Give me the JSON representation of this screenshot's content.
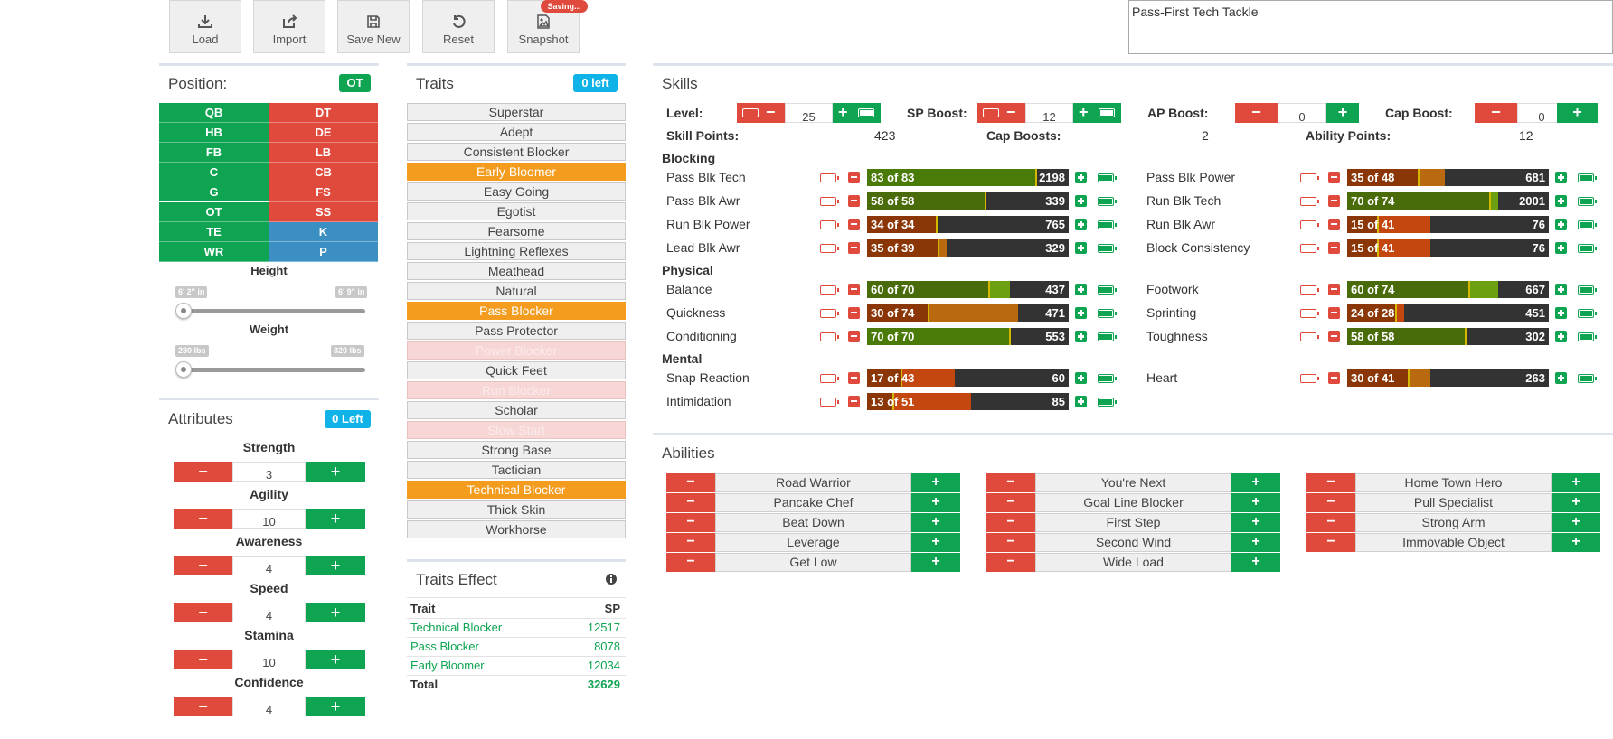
{
  "toolbar": {
    "load": "Load",
    "import": "Import",
    "save_new": "Save New",
    "reset": "Reset",
    "snapshot": "Snapshot",
    "saving_badge": "Saving..."
  },
  "build_name": "Pass-First Tech Tackle",
  "position": {
    "title": "Position:",
    "selected": "OT",
    "left": [
      "QB",
      "HB",
      "FB",
      "C",
      "G",
      "OT",
      "TE",
      "WR"
    ],
    "right": [
      "DT",
      "DE",
      "LB",
      "CB",
      "FS",
      "SS",
      "K",
      "P"
    ],
    "height_label": "Height",
    "height_min": "6' 2\" in",
    "height_max": "6' 9\" in",
    "weight_label": "Weight",
    "weight_min": "280 lbs",
    "weight_max": "320 lbs"
  },
  "attributes": {
    "title": "Attributes",
    "badge": "0 Left",
    "items": [
      {
        "label": "Strength",
        "value": "3"
      },
      {
        "label": "Agility",
        "value": "10"
      },
      {
        "label": "Awareness",
        "value": "4"
      },
      {
        "label": "Speed",
        "value": "4"
      },
      {
        "label": "Stamina",
        "value": "10"
      },
      {
        "label": "Confidence",
        "value": "4"
      }
    ]
  },
  "traits": {
    "title": "Traits",
    "badge": "0 left",
    "items": [
      {
        "label": "Superstar",
        "state": "normal"
      },
      {
        "label": "Adept",
        "state": "normal"
      },
      {
        "label": "Consistent Blocker",
        "state": "normal"
      },
      {
        "label": "Early Bloomer",
        "state": "selected"
      },
      {
        "label": "Easy Going",
        "state": "normal"
      },
      {
        "label": "Egotist",
        "state": "normal"
      },
      {
        "label": "Fearsome",
        "state": "normal"
      },
      {
        "label": "Lightning Reflexes",
        "state": "normal"
      },
      {
        "label": "Meathead",
        "state": "normal"
      },
      {
        "label": "Natural",
        "state": "normal"
      },
      {
        "label": "Pass Blocker",
        "state": "selected"
      },
      {
        "label": "Pass Protector",
        "state": "normal"
      },
      {
        "label": "Power Blocker",
        "state": "disabled"
      },
      {
        "label": "Quick Feet",
        "state": "normal"
      },
      {
        "label": "Run Blocker",
        "state": "disabled"
      },
      {
        "label": "Scholar",
        "state": "normal"
      },
      {
        "label": "Slow Start",
        "state": "disabled"
      },
      {
        "label": "Strong Base",
        "state": "normal"
      },
      {
        "label": "Tactician",
        "state": "normal"
      },
      {
        "label": "Technical Blocker",
        "state": "selected"
      },
      {
        "label": "Thick Skin",
        "state": "normal"
      },
      {
        "label": "Workhorse",
        "state": "normal"
      }
    ]
  },
  "traits_effect": {
    "title": "Traits Effect",
    "col_trait": "Trait",
    "col_sp": "SP",
    "rows": [
      {
        "trait": "Technical Blocker",
        "sp": "12517"
      },
      {
        "trait": "Pass Blocker",
        "sp": "8078"
      },
      {
        "trait": "Early Bloomer",
        "sp": "12034"
      }
    ],
    "total_label": "Total",
    "total_value": "32629"
  },
  "skills": {
    "title": "Skills",
    "level_label": "Level:",
    "level_value": "25",
    "sp_boost_label": "SP Boost:",
    "sp_boost_value": "12",
    "ap_boost_label": "AP Boost:",
    "ap_boost_value": "0",
    "cap_boost_label": "Cap Boost:",
    "cap_boost_value": "0",
    "skill_points_label": "Skill Points:",
    "skill_points_value": "423",
    "cap_boosts_label": "Cap Boosts:",
    "cap_boosts_value": "2",
    "ability_points_label": "Ability Points:",
    "ability_points_value": "12",
    "sections": {
      "blocking": "Blocking",
      "physical": "Physical",
      "mental": "Mental"
    },
    "left": [
      {
        "name": "Pass Blk Tech",
        "current": 83,
        "cap": 83,
        "max": 99,
        "text": "83 of 83",
        "sp": "2198"
      },
      {
        "name": "Pass Blk Awr",
        "current": 58,
        "cap": 58,
        "max": 99,
        "text": "58 of 58",
        "sp": "339",
        "mark": "1"
      },
      {
        "name": "Run Blk Power",
        "current": 34,
        "cap": 34,
        "max": 99,
        "text": "34 of 34",
        "sp": "765"
      },
      {
        "name": "Lead Blk Awr",
        "current": 35,
        "cap": 39,
        "max": 99,
        "text": "35 of 39",
        "sp": "329"
      },
      {
        "name": "Balance",
        "current": 60,
        "cap": 70,
        "max": 99,
        "text": "60 of 70",
        "sp": "437"
      },
      {
        "name": "Quickness",
        "current": 30,
        "cap": 74,
        "max": 99,
        "text": "30 of 74",
        "sp": "471"
      },
      {
        "name": "Conditioning",
        "current": 70,
        "cap": 70,
        "max": 99,
        "text": "70 of 70",
        "sp": "553"
      },
      {
        "name": "Snap Reaction",
        "current": 17,
        "cap": 43,
        "max": 99,
        "text": "17 of 43",
        "sp": "60"
      },
      {
        "name": "Intimidation",
        "current": 13,
        "cap": 51,
        "max": 99,
        "text": "13 of 51",
        "sp": "85"
      }
    ],
    "right": [
      {
        "name": "Pass Blk Power",
        "current": 35,
        "cap": 48,
        "max": 99,
        "text": "35 of 48",
        "sp": "681"
      },
      {
        "name": "Run Blk Tech",
        "current": 70,
        "cap": 74,
        "max": 99,
        "text": "70 of 74",
        "sp": "2001"
      },
      {
        "name": "Run Blk Awr",
        "current": 15,
        "cap": 41,
        "max": 99,
        "text": "15 of 41",
        "sp": "76"
      },
      {
        "name": "Block Consistency",
        "current": 15,
        "cap": 41,
        "max": 99,
        "text": "15 of 41",
        "sp": "76"
      },
      {
        "name": "Footwork",
        "current": 60,
        "cap": 74,
        "max": 99,
        "text": "60 of 74",
        "sp": "667"
      },
      {
        "name": "Sprinting",
        "current": 24,
        "cap": 28,
        "max": 99,
        "text": "24 of 28",
        "sp": "451"
      },
      {
        "name": "Toughness",
        "current": 58,
        "cap": 58,
        "max": 99,
        "text": "58 of 58",
        "sp": "302"
      },
      {
        "name": "Heart",
        "current": 30,
        "cap": 41,
        "max": 99,
        "text": "30 of 41",
        "sp": "263"
      }
    ]
  },
  "abilities": {
    "title": "Abilities",
    "col1": [
      "Road Warrior",
      "Pancake Chef",
      "Beat Down",
      "Leverage",
      "Get Low"
    ],
    "col2": [
      "You're Next",
      "Goal Line Blocker",
      "First Step",
      "Second Wind",
      "Wide Load"
    ],
    "col3": [
      "Home Town Hero",
      "Pull Specialist",
      "Strong Arm",
      "Immovable Object"
    ]
  },
  "colors": {
    "green": "#0ea451",
    "red": "#e04a3c",
    "blue": "#3b8fc3",
    "cyan": "#10b3e8",
    "orange": "#f39c1e"
  }
}
